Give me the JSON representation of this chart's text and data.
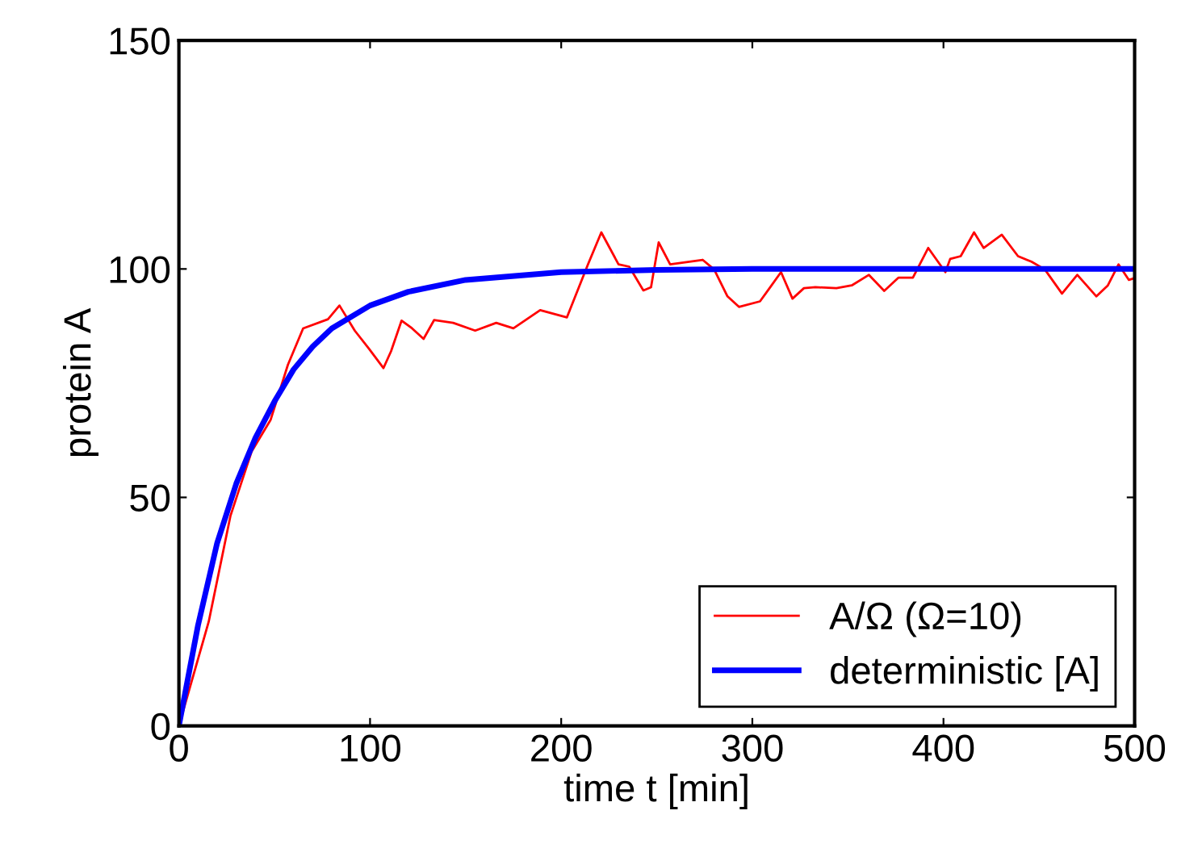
{
  "chart_data": {
    "type": "line",
    "xlabel": "time t [min]",
    "ylabel": "protein A",
    "xlim": [
      0,
      500
    ],
    "ylim": [
      0,
      150
    ],
    "xticks": [
      0,
      100,
      200,
      300,
      400,
      500
    ],
    "yticks": [
      0,
      50,
      100,
      150
    ],
    "grid": false,
    "legend": "bottom right",
    "marker": "none",
    "line_style": "solid",
    "series": [
      {
        "name": "A/Ω (Ω=10)",
        "color": "#ff0000",
        "x": [
          0,
          15.6,
          27,
          38,
          48,
          57,
          65,
          78,
          84,
          92,
          99.5,
          107,
          111,
          116.5,
          122,
          128,
          133.5,
          143.5,
          155,
          166,
          175,
          189,
          203,
          214,
          221,
          230,
          235.6,
          243,
          247,
          251,
          257,
          274,
          280,
          287,
          293,
          304,
          309,
          315,
          321,
          327,
          333,
          344,
          352,
          361,
          369,
          376.5,
          384,
          392,
          401,
          403.5,
          409,
          416,
          421,
          430.5,
          439,
          446,
          453,
          462,
          470,
          480,
          486,
          491.6,
          497,
          500
        ],
        "values": [
          0,
          22.8,
          46,
          60,
          67,
          79,
          87,
          89,
          92,
          86.5,
          82.5,
          78.3,
          82,
          88.7,
          87,
          84.7,
          88.8,
          88.2,
          86.5,
          88.2,
          87,
          91,
          89.4,
          101,
          108,
          101,
          100.5,
          95.3,
          96,
          105.8,
          101,
          102,
          99.9,
          94,
          91.7,
          92.9,
          95.8,
          99.3,
          93.5,
          95.8,
          96,
          95.8,
          96.4,
          98.7,
          95.2,
          98.1,
          98.1,
          104.6,
          99.3,
          102.2,
          102.8,
          108,
          104.6,
          107.5,
          102.8,
          101.6,
          99.9,
          94.6,
          98.7,
          94,
          96.4,
          101,
          97.6,
          98
        ]
      },
      {
        "name": "deterministic [A]",
        "color": "#0000ff",
        "x": [
          0,
          10,
          20,
          30,
          40,
          50,
          60,
          70,
          80,
          100,
          120,
          150,
          200,
          250,
          300,
          400,
          500
        ],
        "values": [
          0,
          22,
          40,
          53,
          63,
          71,
          78,
          83,
          87,
          92,
          95,
          97.6,
          99.3,
          99.8,
          100,
          100,
          100
        ]
      }
    ]
  }
}
